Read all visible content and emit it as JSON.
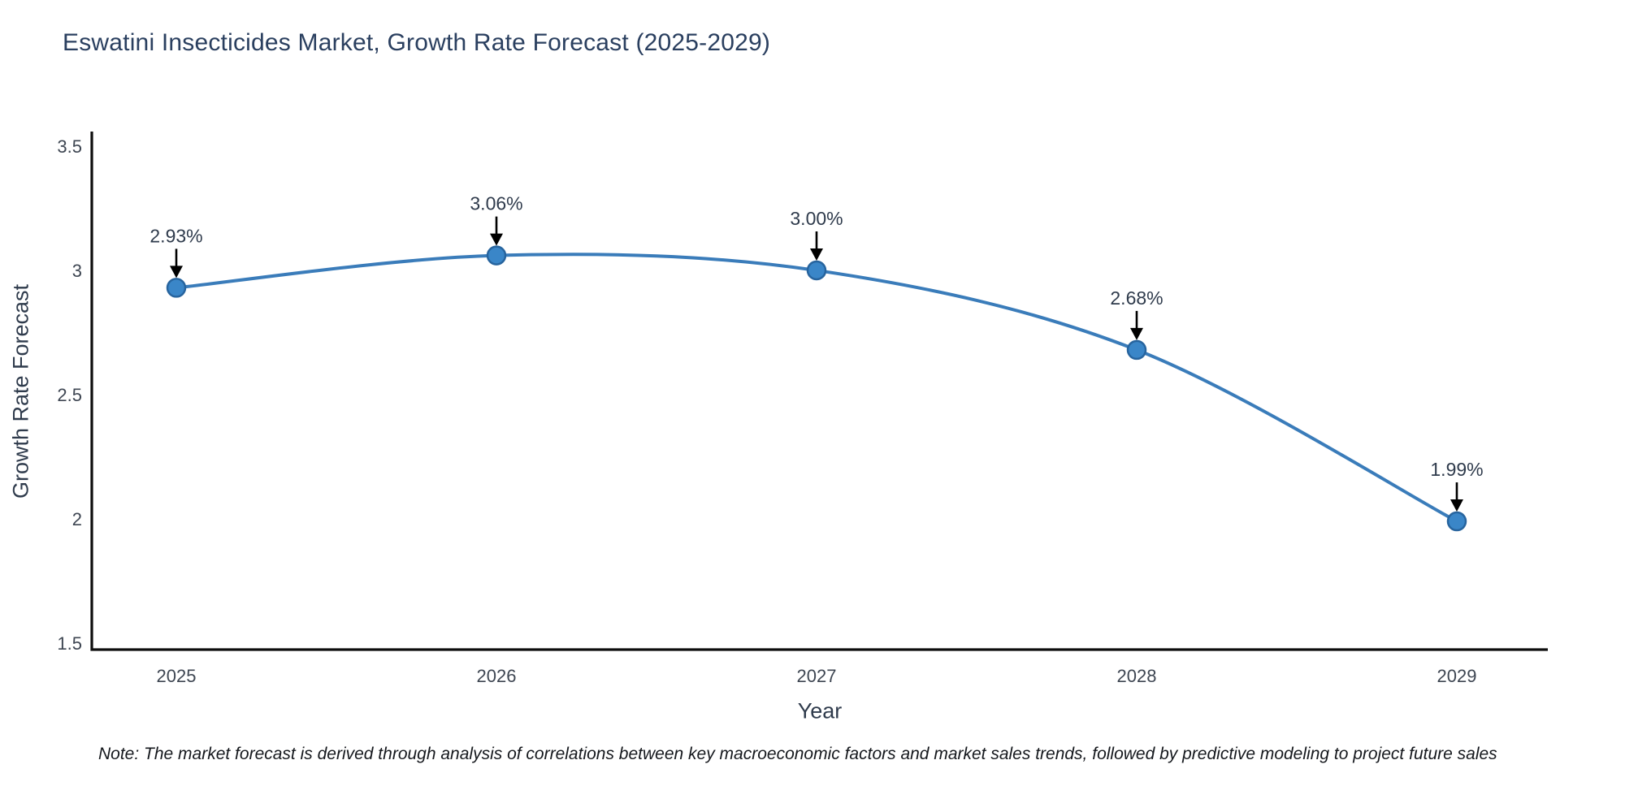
{
  "chart_data": {
    "type": "line",
    "title": "Eswatini Insecticides Market, Growth Rate Forecast (2025-2029)",
    "xlabel": "Year",
    "ylabel": "Growth Rate Forecast",
    "x": [
      2025,
      2026,
      2027,
      2028,
      2029
    ],
    "xtick_labels": [
      "2025",
      "2026",
      "2027",
      "2028",
      "2029"
    ],
    "values": [
      2.93,
      3.06,
      3.0,
      2.68,
      1.99
    ],
    "point_labels": [
      "2.93%",
      "3.06%",
      "3.00%",
      "2.68%",
      "1.99%"
    ],
    "ylim": [
      1.5,
      3.5
    ],
    "yticks": [
      3.5,
      3,
      2.5,
      2,
      1.5
    ],
    "ytick_labels": [
      "3.5",
      "3",
      "2.5",
      "2",
      "1.5"
    ],
    "grid": false,
    "legend": "none",
    "line_shape": "spline",
    "annotation_style": "label-with-down-arrow",
    "colors": {
      "line": "#3a7cba",
      "marker_fill": "#3a86c8",
      "marker_edge": "#27649e",
      "axis_spine": "#0d0d0d",
      "arrow": "#000000",
      "title_text": "#2a3f5f",
      "tick_text": "#3e4652",
      "point_label_text": "#2f3b4c"
    }
  },
  "footnote": "Note: The market forecast is derived through analysis of correlations between key macroeconomic factors and market sales trends, followed by predictive modeling to project future sales"
}
